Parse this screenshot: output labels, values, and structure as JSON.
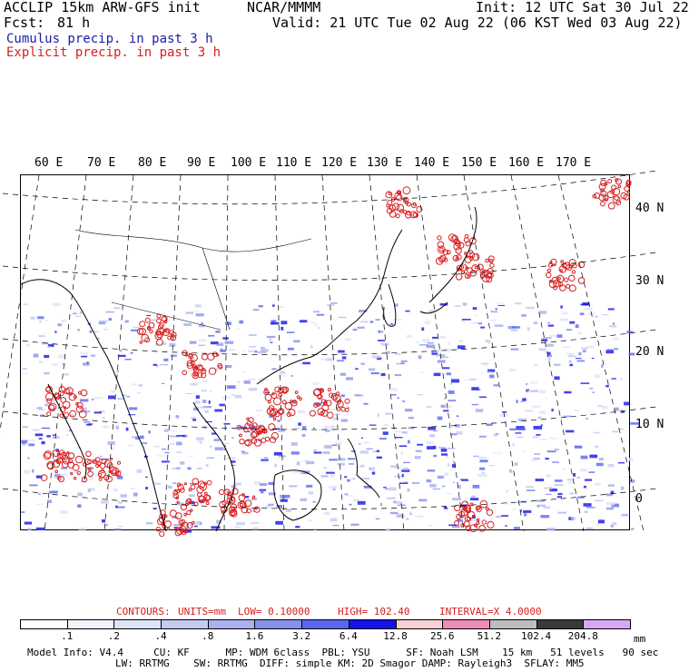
{
  "header": {
    "model_line": "ACCLIP 15km ARW-GFS init",
    "center_org": "NCAR/MMMM",
    "init_line": "Init: 12 UTC Sat 30 Jul 22",
    "fcst_label": "Fcst:",
    "fcst_value": "81 h",
    "valid_line": "Valid: 21 UTC Tue 02 Aug 22 (06 KST Wed 03 Aug 22)",
    "cumulus_label": "Cumulus precip. in past 3 h",
    "explicit_label": "Explicit precip. in past 3 h",
    "cumulus_color": "#1a1aa6",
    "explicit_color": "#d62020"
  },
  "map": {
    "lon_labels": [
      "60 E",
      "70 E",
      "80 E",
      "90 E",
      "100 E",
      "110 E",
      "120 E",
      "130 E",
      "140 E",
      "150 E",
      "160 E",
      "170 E"
    ],
    "lat_labels": [
      "40 N",
      "30 N",
      "20 N",
      "10 N",
      "0"
    ]
  },
  "contours": {
    "label": "CONTOURS:",
    "units": "UNITS=mm",
    "low": "LOW= 0.10000",
    "high": "HIGH= 102.40",
    "interval": "INTERVAL=X 4.0000",
    "color": "#d62020"
  },
  "colorbar": {
    "unit": "mm",
    "ticks": [
      ".1",
      ".2",
      ".4",
      ".8",
      "1.6",
      "3.2",
      "6.4",
      "12.8",
      "25.6",
      "51.2",
      "102.4",
      "204.8"
    ],
    "colors": [
      "#ffffff",
      "#f2f4fc",
      "#dfe3f8",
      "#c4cbf3",
      "#a9b2ee",
      "#8891ea",
      "#5a66ef",
      "#1414e6",
      "#f7d0d6",
      "#f08cb8",
      "#bdbdbd",
      "#3a3a3a",
      "#d8a8f4"
    ]
  },
  "footer": {
    "line1": "Model Info: V4.4     CU: KF      MP: WDM 6class  PBL: YSU      SF: Noah LSM    15 km   51 levels   90 sec",
    "line2": "LW: RRTMG    SW: RRTMG  DIFF: simple KM: 2D Smagor DAMP: Rayleigh3  SFLAY: MM5"
  }
}
